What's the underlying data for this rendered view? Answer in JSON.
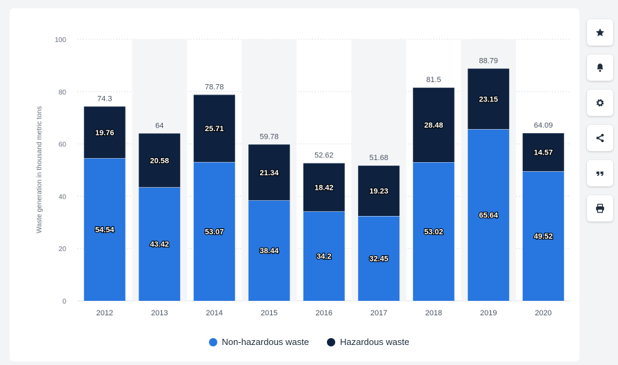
{
  "chart_data": {
    "type": "bar",
    "stacked": true,
    "title": "",
    "xlabel": "",
    "ylabel": "Waste generation in thousand metric tons",
    "ylim": [
      0,
      100
    ],
    "yticks": [
      0,
      20,
      40,
      60,
      80,
      100
    ],
    "grid": true,
    "legend_position": "bottom",
    "categories": [
      "2012",
      "2013",
      "2014",
      "2015",
      "2016",
      "2017",
      "2018",
      "2019",
      "2020"
    ],
    "series": [
      {
        "name": "Non-hazardous waste",
        "color": "#2877e0",
        "values": [
          54.54,
          43.42,
          53.07,
          38.44,
          34.2,
          32.45,
          53.02,
          65.64,
          49.52
        ]
      },
      {
        "name": "Hazardous waste",
        "color": "#0e2240",
        "values": [
          19.76,
          20.58,
          25.71,
          21.34,
          18.42,
          19.23,
          28.48,
          23.15,
          14.57
        ]
      }
    ],
    "totals": [
      74.3,
      64,
      78.78,
      59.78,
      52.62,
      51.68,
      81.5,
      88.79,
      64.09
    ]
  },
  "toolbar": {
    "buttons": [
      {
        "icon": "star-icon"
      },
      {
        "icon": "bell-icon"
      },
      {
        "icon": "gear-icon"
      },
      {
        "icon": "share-icon"
      },
      {
        "icon": "quote-icon"
      },
      {
        "icon": "print-icon"
      }
    ]
  }
}
